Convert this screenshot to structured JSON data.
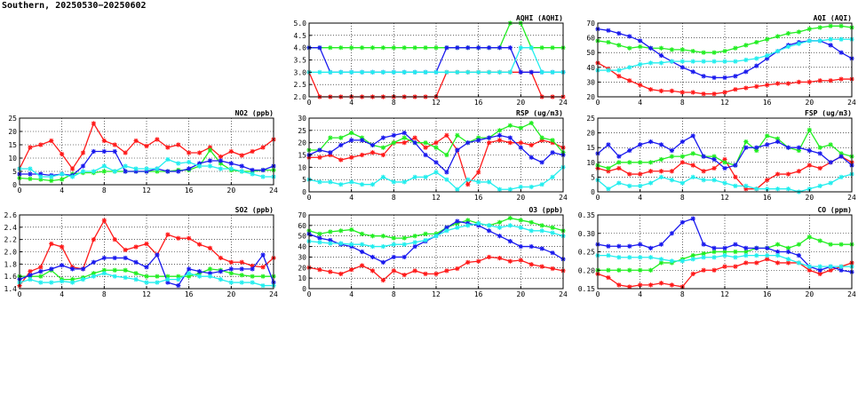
{
  "title": "Southern, 20250530−20250602",
  "colors": {
    "red": "#ff1a1a",
    "green": "#22ee22",
    "blue": "#1a1aee",
    "cyan": "#22eeee"
  },
  "chart_data": [
    {
      "type": "line",
      "title": "NO2 (ppb)",
      "xlim": [
        0,
        24
      ],
      "ylim": [
        0,
        25
      ],
      "xticks": [
        "0",
        "4",
        "8",
        "12",
        "16",
        "20",
        "24"
      ],
      "yticks": [
        "0",
        "5",
        "10",
        "15",
        "20",
        "25"
      ],
      "grid": true,
      "series": [
        {
          "color": "red",
          "values": [
            6,
            14,
            15,
            16.5,
            11.5,
            6,
            12,
            23,
            16.5,
            15,
            12,
            16.5,
            14.5,
            17,
            14,
            15,
            12,
            12,
            14,
            10.5,
            12.5,
            11,
            12.5,
            14,
            17
          ]
        },
        {
          "color": "green",
          "values": [
            2.5,
            2.2,
            2,
            1.5,
            2,
            4,
            4.5,
            4.5,
            5,
            5,
            5,
            5,
            5,
            5,
            5,
            5.5,
            5.5,
            7,
            13,
            8,
            5.5,
            5,
            5,
            5.5,
            5.5
          ]
        },
        {
          "color": "blue",
          "values": [
            4,
            4,
            4,
            3.5,
            4,
            3.5,
            7,
            12.5,
            12.5,
            12.5,
            5,
            5,
            5,
            6,
            5,
            5,
            6,
            8,
            9,
            9,
            8,
            7,
            5.5,
            5.5,
            7
          ]
        },
        {
          "color": "cyan",
          "values": [
            6,
            6,
            3,
            3,
            4,
            3,
            5,
            5,
            7,
            5,
            7,
            6,
            6,
            6,
            9.5,
            8,
            8.5,
            7,
            7,
            6,
            6,
            5,
            4,
            3,
            3
          ]
        }
      ]
    },
    {
      "type": "line",
      "title": "SO2 (ppb)",
      "xlim": [
        0,
        24
      ],
      "ylim": [
        1.4,
        2.6
      ],
      "xticks": [
        "0",
        "4",
        "8",
        "12",
        "16",
        "20",
        "24"
      ],
      "yticks": [
        "1.4",
        "1.6",
        "1.8",
        "2.0",
        "2.2",
        "2.4",
        "2.6"
      ],
      "grid": true,
      "series": [
        {
          "color": "red",
          "values": [
            1.45,
            1.68,
            1.75,
            2.13,
            2.08,
            1.75,
            1.72,
            2.2,
            2.51,
            2.2,
            2.03,
            2.08,
            2.13,
            1.95,
            2.28,
            2.22,
            2.22,
            2.12,
            2.06,
            1.9,
            1.83,
            1.83,
            1.77,
            1.75,
            1.9
          ]
        },
        {
          "color": "green",
          "values": [
            1.6,
            1.6,
            1.6,
            1.7,
            1.55,
            1.55,
            1.58,
            1.65,
            1.7,
            1.7,
            1.7,
            1.65,
            1.6,
            1.6,
            1.6,
            1.6,
            1.6,
            1.65,
            1.72,
            1.7,
            1.65,
            1.62,
            1.6,
            1.6,
            1.6
          ]
        },
        {
          "color": "blue",
          "values": [
            1.55,
            1.62,
            1.68,
            1.72,
            1.78,
            1.72,
            1.72,
            1.83,
            1.9,
            1.9,
            1.9,
            1.83,
            1.75,
            1.95,
            1.5,
            1.45,
            1.72,
            1.68,
            1.65,
            1.68,
            1.72,
            1.72,
            1.72,
            1.95,
            1.5
          ]
        },
        {
          "color": "cyan",
          "values": [
            1.5,
            1.55,
            1.5,
            1.5,
            1.52,
            1.5,
            1.55,
            1.6,
            1.65,
            1.6,
            1.58,
            1.55,
            1.5,
            1.5,
            1.55,
            1.55,
            1.65,
            1.6,
            1.6,
            1.55,
            1.5,
            1.5,
            1.5,
            1.45,
            1.45
          ]
        }
      ]
    },
    {
      "type": "line",
      "title": "AQHI (AQHI)",
      "xlim": [
        0,
        24
      ],
      "ylim": [
        2.0,
        5.0
      ],
      "xticks": [
        "0",
        "4",
        "8",
        "12",
        "16",
        "20",
        "24"
      ],
      "yticks": [
        "2.0",
        "2.5",
        "3.0",
        "3.5",
        "4.0",
        "4.5",
        "5.0"
      ],
      "grid": true,
      "series": [
        {
          "color": "red",
          "values": [
            3,
            2,
            2,
            2,
            2,
            2,
            2,
            2,
            2,
            2,
            2,
            2,
            2,
            3,
            3,
            3,
            3,
            3,
            3,
            3,
            3,
            3,
            2,
            2,
            2
          ]
        },
        {
          "color": "green",
          "values": [
            4,
            4,
            4,
            4,
            4,
            4,
            4,
            4,
            4,
            4,
            4,
            4,
            4,
            4,
            4,
            4,
            4,
            4,
            4,
            5,
            5,
            4,
            4,
            4,
            4
          ]
        },
        {
          "color": "blue",
          "values": [
            4,
            4,
            3,
            3,
            3,
            3,
            3,
            3,
            3,
            3,
            3,
            3,
            3,
            4,
            4,
            4,
            4,
            4,
            4,
            4,
            3,
            3,
            3,
            3,
            3
          ]
        },
        {
          "color": "cyan",
          "values": [
            3,
            3,
            3,
            3,
            3,
            3,
            3,
            3,
            3,
            3,
            3,
            3,
            3,
            3,
            3,
            3,
            3,
            3,
            3,
            3,
            4,
            4,
            3,
            3,
            3
          ]
        }
      ]
    },
    {
      "type": "line",
      "title": "RSP (ug/m3)",
      "xlim": [
        0,
        24
      ],
      "ylim": [
        0,
        30
      ],
      "xticks": [
        "0",
        "4",
        "8",
        "12",
        "16",
        "20",
        "24"
      ],
      "yticks": [
        "0",
        "5",
        "10",
        "15",
        "20",
        "25",
        "30"
      ],
      "grid": true,
      "series": [
        {
          "color": "red",
          "values": [
            14,
            14,
            15,
            13,
            14,
            15,
            16,
            15,
            20,
            20,
            22,
            18,
            20,
            23,
            17,
            3,
            8,
            20,
            21,
            20,
            20,
            19,
            21,
            20,
            18
          ]
        },
        {
          "color": "green",
          "values": [
            17,
            17,
            22,
            22,
            24,
            22,
            19,
            18,
            20,
            22,
            20,
            20,
            18,
            15,
            23,
            20,
            22,
            22,
            25,
            27,
            26,
            28,
            22,
            21,
            16
          ]
        },
        {
          "color": "blue",
          "values": [
            15,
            17,
            16,
            19,
            21,
            21,
            19,
            22,
            23,
            24,
            20,
            15,
            12,
            8,
            17,
            20,
            21,
            22,
            23,
            22,
            18,
            14,
            12,
            16,
            15
          ]
        },
        {
          "color": "cyan",
          "values": [
            5,
            4,
            4,
            3,
            4,
            3,
            3,
            6,
            4,
            4,
            6,
            6,
            8,
            5,
            1,
            5,
            4,
            4,
            1,
            1,
            2,
            2,
            3,
            6,
            10
          ]
        }
      ]
    },
    {
      "type": "line",
      "title": "O3 (ppb)",
      "xlim": [
        0,
        24
      ],
      "ylim": [
        0,
        70
      ],
      "xticks": [
        "0",
        "4",
        "8",
        "12",
        "16",
        "20",
        "24"
      ],
      "yticks": [
        "0",
        "10",
        "20",
        "30",
        "40",
        "50",
        "60",
        "70"
      ],
      "grid": true,
      "series": [
        {
          "color": "red",
          "values": [
            20,
            18,
            16,
            14,
            18,
            22,
            17,
            8,
            17,
            13,
            17,
            14,
            14,
            17,
            19,
            25,
            26,
            30,
            29,
            26,
            27,
            23,
            21,
            19,
            17
          ]
        },
        {
          "color": "green",
          "values": [
            55,
            52,
            54,
            55,
            56,
            52,
            50,
            50,
            48,
            48,
            50,
            52,
            52,
            58,
            62,
            65,
            62,
            60,
            63,
            67,
            65,
            63,
            60,
            58,
            55
          ]
        },
        {
          "color": "blue",
          "values": [
            52,
            48,
            46,
            42,
            40,
            35,
            30,
            25,
            30,
            30,
            40,
            45,
            50,
            58,
            64,
            62,
            60,
            55,
            50,
            45,
            40,
            40,
            38,
            34,
            28
          ]
        },
        {
          "color": "cyan",
          "values": [
            45,
            44,
            43,
            43,
            42,
            42,
            40,
            40,
            42,
            42,
            44,
            46,
            50,
            55,
            58,
            60,
            62,
            60,
            58,
            60,
            58,
            55,
            55,
            53,
            50
          ]
        }
      ]
    },
    {
      "type": "line",
      "title": "AQI (AQI)",
      "xlim": [
        0,
        24
      ],
      "ylim": [
        20,
        70
      ],
      "xticks": [
        "0",
        "4",
        "8",
        "12",
        "16",
        "20",
        "24"
      ],
      "yticks": [
        "20",
        "30",
        "40",
        "50",
        "60",
        "70"
      ],
      "grid": true,
      "series": [
        {
          "color": "red",
          "values": [
            43,
            39,
            34,
            31,
            28,
            25,
            24,
            24,
            23,
            23,
            22,
            22,
            23,
            25,
            26,
            27,
            28,
            29,
            29,
            30,
            30,
            31,
            31,
            32,
            32
          ]
        },
        {
          "color": "green",
          "values": [
            58,
            57,
            55,
            53,
            54,
            53,
            53,
            52,
            52,
            51,
            50,
            50,
            51,
            53,
            55,
            57,
            59,
            61,
            63,
            64,
            66,
            67,
            68,
            68,
            67
          ]
        },
        {
          "color": "blue",
          "values": [
            66,
            65,
            63,
            61,
            58,
            53,
            48,
            44,
            40,
            37,
            34,
            33,
            33,
            34,
            37,
            41,
            46,
            51,
            55,
            57,
            58,
            58,
            55,
            50,
            46
          ]
        },
        {
          "color": "cyan",
          "values": [
            38,
            38,
            38,
            40,
            42,
            43,
            43,
            44,
            44,
            44,
            44,
            44,
            44,
            44,
            45,
            46,
            48,
            51,
            54,
            56,
            58,
            58,
            59,
            59,
            59
          ]
        }
      ]
    },
    {
      "type": "line",
      "title": "FSP (ug/m3)",
      "xlim": [
        0,
        24
      ],
      "ylim": [
        0,
        25
      ],
      "xticks": [
        "0",
        "4",
        "8",
        "12",
        "16",
        "20",
        "24"
      ],
      "yticks": [
        "0",
        "5",
        "10",
        "15",
        "20",
        "25"
      ],
      "grid": true,
      "series": [
        {
          "color": "red",
          "values": [
            8,
            7,
            8,
            6,
            6,
            7,
            7,
            7,
            10,
            9,
            7,
            8,
            11,
            5,
            1,
            1,
            4,
            6,
            6,
            7,
            9,
            8,
            10,
            12,
            10
          ]
        },
        {
          "color": "green",
          "values": [
            9,
            8,
            10,
            10,
            10,
            10,
            11,
            12,
            12,
            13,
            12,
            12,
            10,
            9,
            17,
            14,
            19,
            18,
            15,
            14,
            21,
            15,
            16,
            13,
            12
          ]
        },
        {
          "color": "blue",
          "values": [
            13,
            16,
            12,
            14,
            16,
            17,
            16,
            14,
            17,
            19,
            12,
            11,
            8,
            9,
            15,
            15,
            16,
            17,
            15,
            15,
            14,
            13,
            10,
            12,
            9
          ]
        },
        {
          "color": "cyan",
          "values": [
            4,
            1,
            3,
            2,
            2,
            3,
            5,
            4,
            3,
            5,
            4,
            4,
            3,
            2,
            2,
            1,
            1,
            1,
            1,
            0,
            1,
            2,
            3,
            5,
            6
          ]
        }
      ]
    },
    {
      "type": "line",
      "title": "CO (ppm)",
      "xlim": [
        0,
        24
      ],
      "ylim": [
        0.15,
        0.35
      ],
      "xticks": [
        "0",
        "4",
        "8",
        "12",
        "16",
        "20",
        "24"
      ],
      "yticks": [
        "0.15",
        "0.20",
        "0.25",
        "0.30",
        "0.35"
      ],
      "grid": true,
      "series": [
        {
          "color": "red",
          "values": [
            0.19,
            0.18,
            0.16,
            0.155,
            0.16,
            0.16,
            0.165,
            0.16,
            0.155,
            0.19,
            0.2,
            0.2,
            0.21,
            0.21,
            0.22,
            0.22,
            0.23,
            0.22,
            0.22,
            0.22,
            0.2,
            0.19,
            0.2,
            0.21,
            0.22
          ]
        },
        {
          "color": "green",
          "values": [
            0.2,
            0.2,
            0.2,
            0.2,
            0.2,
            0.2,
            0.22,
            0.22,
            0.23,
            0.24,
            0.245,
            0.25,
            0.25,
            0.25,
            0.25,
            0.26,
            0.26,
            0.27,
            0.26,
            0.27,
            0.29,
            0.28,
            0.27,
            0.27,
            0.27
          ]
        },
        {
          "color": "blue",
          "values": [
            0.27,
            0.265,
            0.265,
            0.265,
            0.27,
            0.26,
            0.27,
            0.3,
            0.33,
            0.34,
            0.27,
            0.26,
            0.26,
            0.27,
            0.26,
            0.26,
            0.26,
            0.25,
            0.25,
            0.24,
            0.21,
            0.2,
            0.21,
            0.2,
            0.195
          ]
        },
        {
          "color": "cyan",
          "values": [
            0.24,
            0.24,
            0.235,
            0.235,
            0.235,
            0.235,
            0.23,
            0.225,
            0.225,
            0.23,
            0.235,
            0.235,
            0.24,
            0.235,
            0.24,
            0.24,
            0.24,
            0.24,
            0.23,
            0.22,
            0.21,
            0.21,
            0.21,
            0.21,
            0.21
          ]
        }
      ]
    }
  ]
}
